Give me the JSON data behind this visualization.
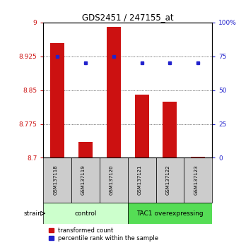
{
  "title": "GDS2451 / 247155_at",
  "samples": [
    "GSM137118",
    "GSM137119",
    "GSM137120",
    "GSM137121",
    "GSM137122",
    "GSM137123"
  ],
  "red_values": [
    8.955,
    8.735,
    8.99,
    8.84,
    8.825,
    8.702
  ],
  "blue_values": [
    75,
    70,
    75,
    70,
    70,
    70
  ],
  "ylim_left": [
    8.7,
    9.0
  ],
  "ylim_right": [
    0,
    100
  ],
  "yticks_left": [
    8.7,
    8.775,
    8.85,
    8.925,
    9.0
  ],
  "yticks_right": [
    0,
    25,
    50,
    75,
    100
  ],
  "ytick_labels_left": [
    "8.7",
    "8.775",
    "8.85",
    "8.925",
    "9"
  ],
  "ytick_labels_right": [
    "0",
    "25",
    "50",
    "75",
    "100%"
  ],
  "hlines": [
    8.775,
    8.85,
    8.925
  ],
  "bar_color": "#cc1111",
  "dot_color": "#2222cc",
  "bar_bottom": 8.7,
  "groups": [
    {
      "label": "control",
      "indices": [
        0,
        1,
        2
      ],
      "color": "#ccffcc"
    },
    {
      "label": "TAC1 overexpressing",
      "indices": [
        3,
        4,
        5
      ],
      "color": "#55dd55"
    }
  ],
  "group_label_prefix": "strain",
  "legend_red": "transformed count",
  "legend_blue": "percentile rank within the sample",
  "bar_width": 0.5,
  "sample_bg_color": "#cccccc",
  "fig_width": 3.41,
  "fig_height": 3.54,
  "dpi": 100
}
